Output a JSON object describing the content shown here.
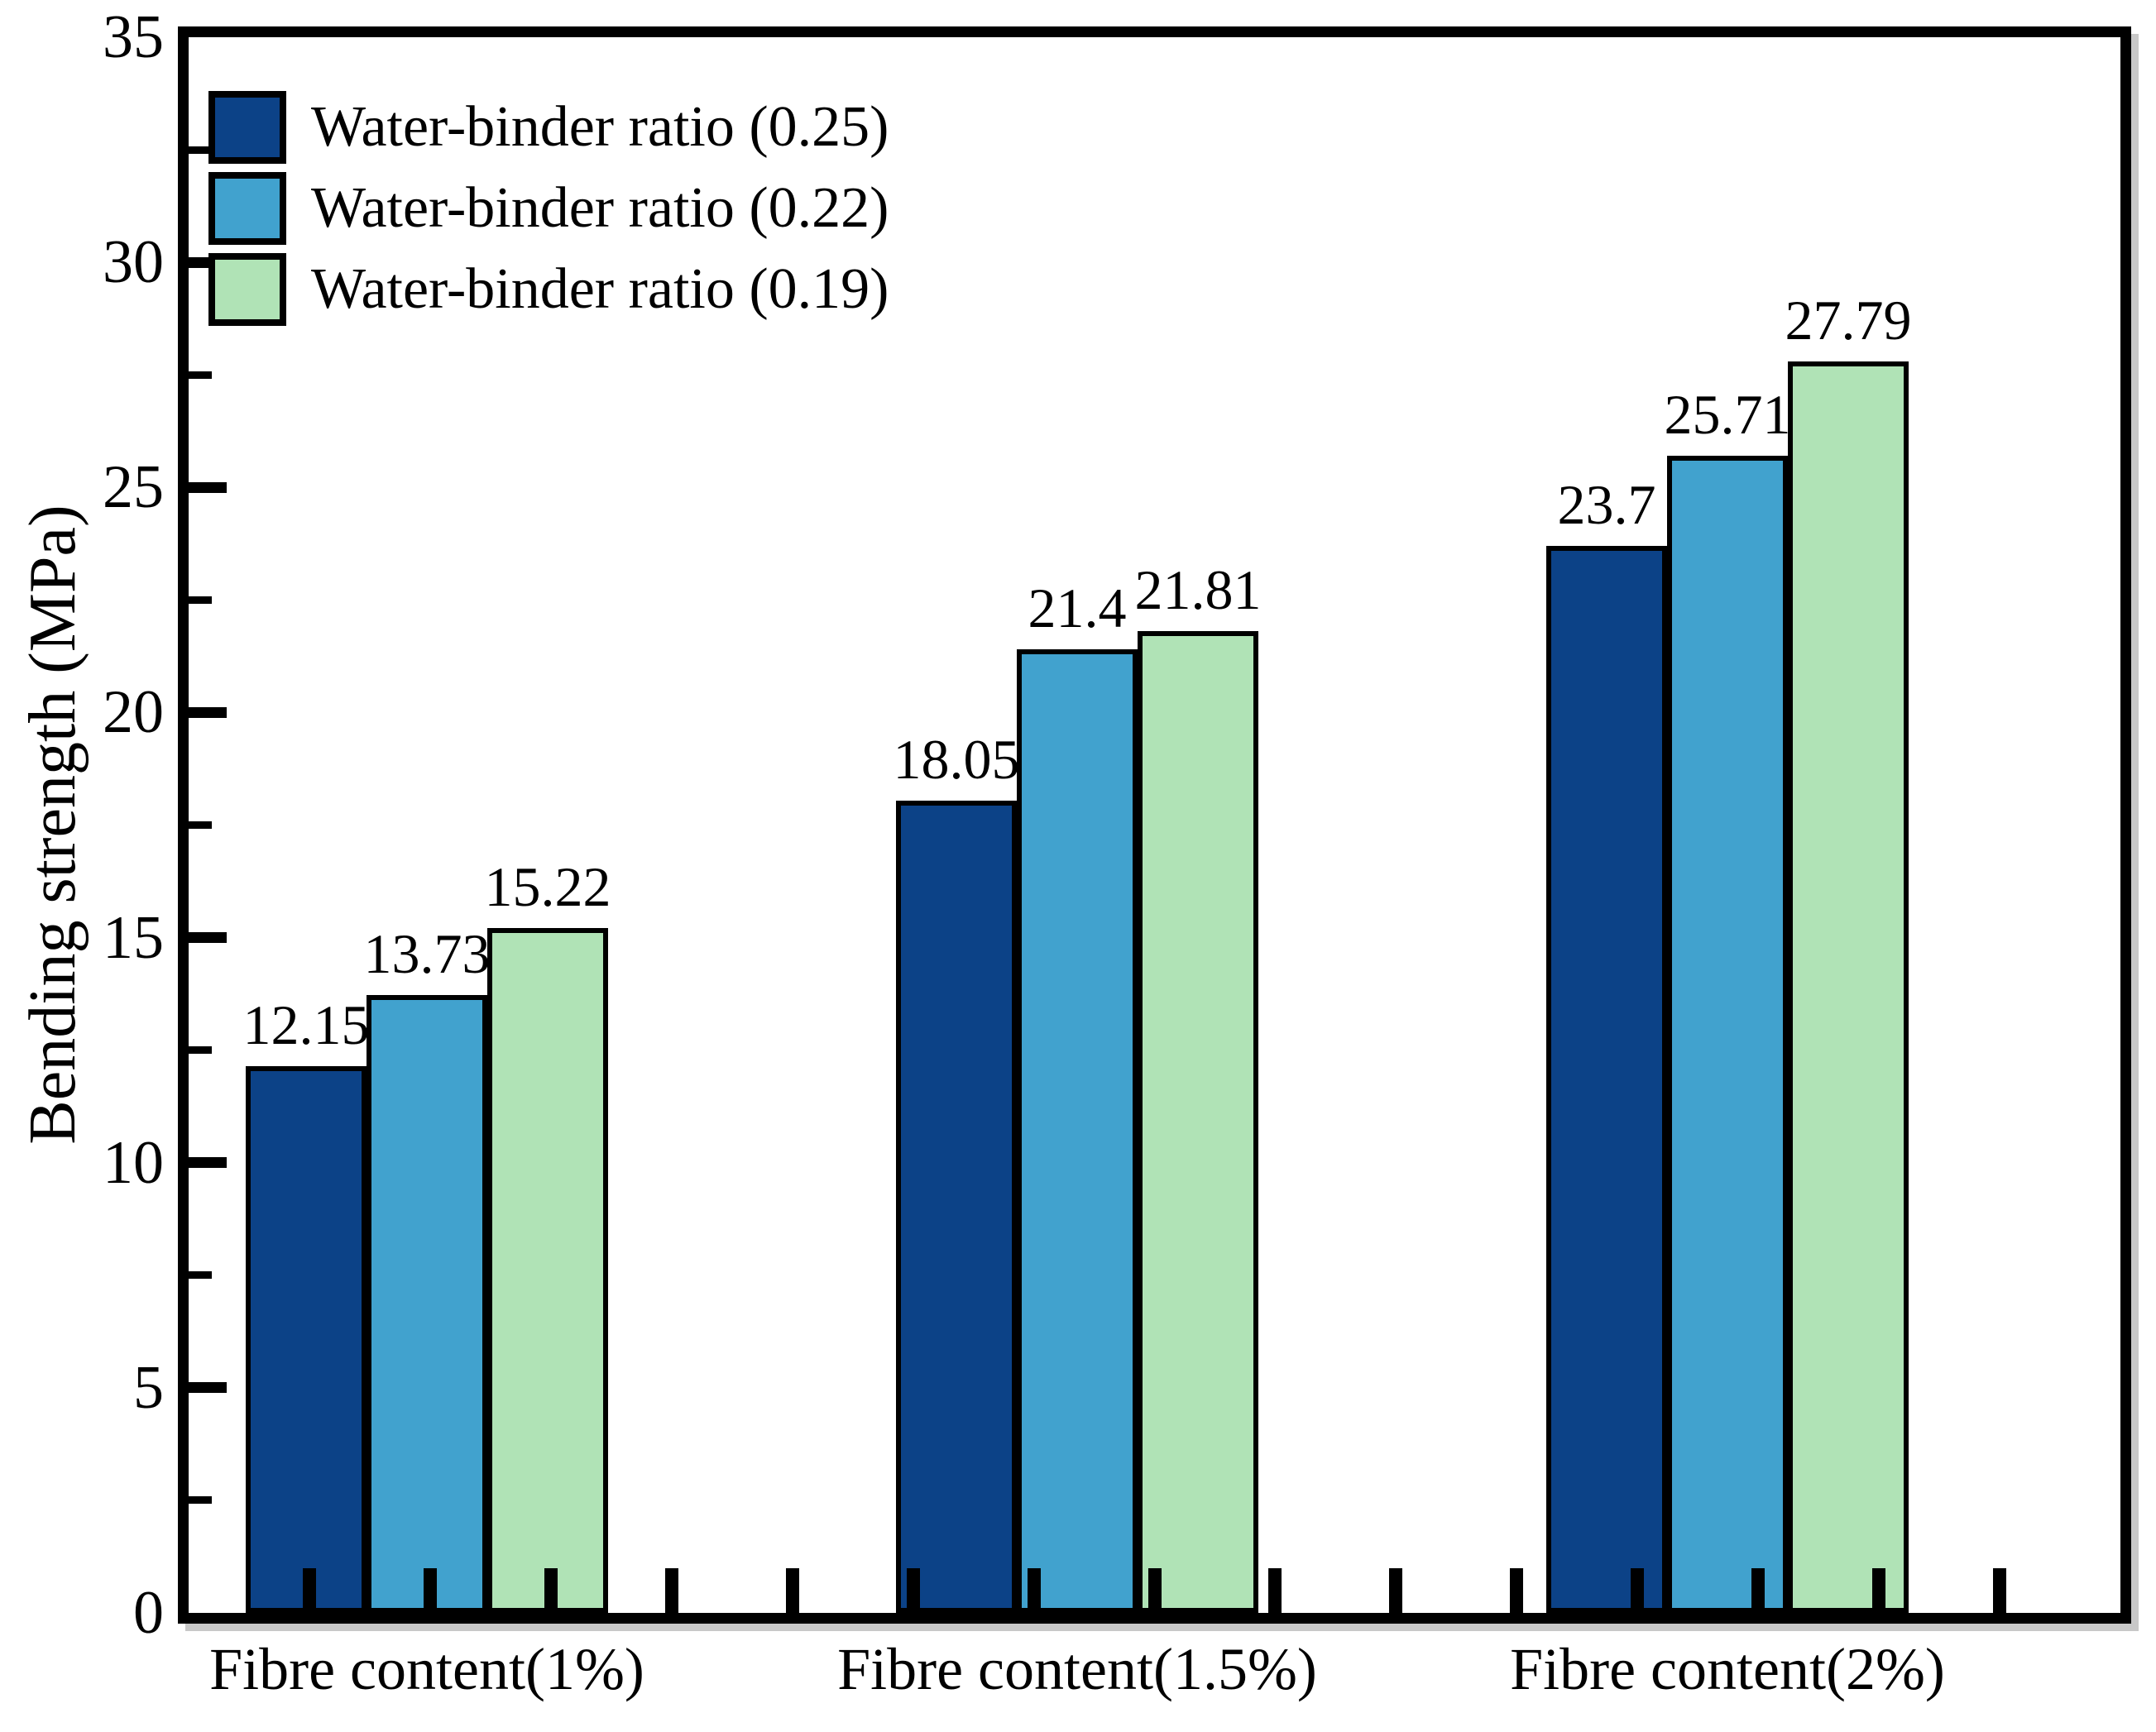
{
  "chart_data": {
    "type": "bar",
    "title": "",
    "xlabel": "",
    "ylabel": "Bending strength (MPa)",
    "ylim": [
      0,
      35
    ],
    "y_major_tick_step": 5,
    "y_minor_tick_step": 2.5,
    "y_major_tick_labels": [
      "0",
      "5",
      "10",
      "15",
      "20",
      "25",
      "30",
      "35"
    ],
    "grid": false,
    "legend_position": "upper-left",
    "value_labels_shown": true,
    "categories": [
      "Fibre content(1%)",
      "Fibre content(1.5%)",
      "Fibre content(2%)"
    ],
    "series": [
      {
        "name": "Water-binder ratio (0.25)",
        "color": "#0c4287",
        "values": [
          12.15,
          18.05,
          23.7
        ],
        "value_labels": [
          "12.15",
          "18.05",
          "23.7"
        ]
      },
      {
        "name": "Water-binder ratio (0.22)",
        "color": "#41a2ce",
        "values": [
          13.73,
          21.4,
          25.71
        ],
        "value_labels": [
          "13.73",
          "21.4",
          "25.71"
        ]
      },
      {
        "name": "Water-binder ratio (0.19)",
        "color": "#b0e3b6",
        "values": [
          15.22,
          21.81,
          27.79
        ],
        "value_labels": [
          "15.22",
          "21.81",
          "27.79"
        ]
      }
    ],
    "styling": {
      "bar_edge_color": "#000000",
      "axis_color": "#000000",
      "background_color": "#ffffff",
      "shadow_color": "#c8c8c8"
    }
  }
}
